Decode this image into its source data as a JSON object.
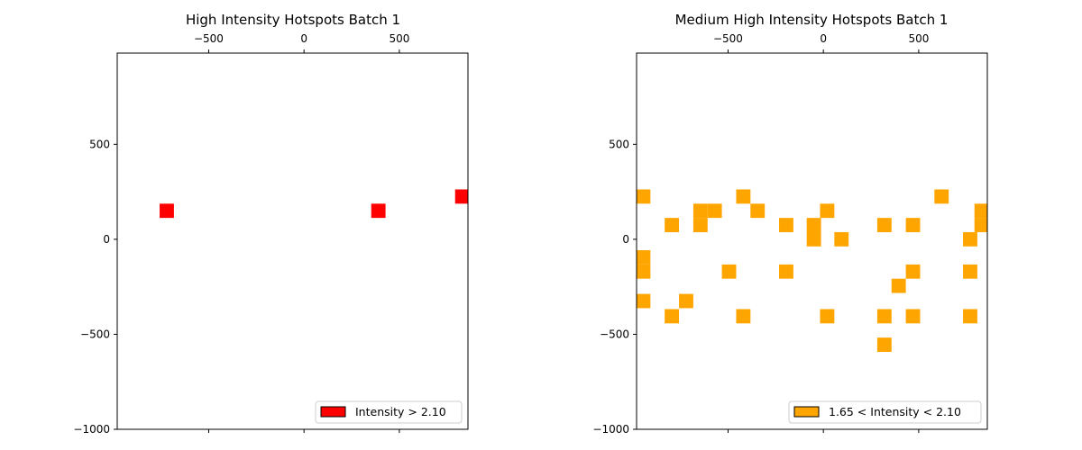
{
  "chart_data": [
    {
      "type": "heatmap",
      "title": "High Intensity Hotspots Batch 1",
      "xlabel": "",
      "ylabel": "",
      "xlim": [
        -980,
        860
      ],
      "ylim": [
        -1000,
        980
      ],
      "xticks": [
        -500,
        0,
        500
      ],
      "xtick_labels": [
        "−500",
        "0",
        "500"
      ],
      "yticks": [
        -1000,
        -500,
        0,
        500
      ],
      "ytick_labels": [
        "−1000",
        "−500",
        "0",
        "500"
      ],
      "cell_width": 75,
      "cell_height": 75,
      "color": "#ff0000",
      "legend": {
        "label": "Intensity > 2.10",
        "position": "lower-right"
      },
      "cells": [
        {
          "x": -720,
          "y": 150
        },
        {
          "x": 390,
          "y": 150
        },
        {
          "x": 830,
          "y": 225
        }
      ]
    },
    {
      "type": "heatmap",
      "title": "Medium High Intensity Hotspots Batch 1",
      "xlabel": "",
      "ylabel": "",
      "xlim": [
        -980,
        860
      ],
      "ylim": [
        -1000,
        980
      ],
      "xticks": [
        -500,
        0,
        500
      ],
      "xtick_labels": [
        "−500",
        "0",
        "500"
      ],
      "yticks": [
        -1000,
        -500,
        0,
        500
      ],
      "ytick_labels": [
        "−1000",
        "−500",
        "0",
        "500"
      ],
      "cell_width": 75,
      "cell_height": 75,
      "color": "#ffa500",
      "legend": {
        "label": "1.65 < Intensity < 2.10",
        "position": "lower-right"
      },
      "cells": [
        {
          "x": -945,
          "y": 225
        },
        {
          "x": -420,
          "y": 225
        },
        {
          "x": 620,
          "y": 225
        },
        {
          "x": -795,
          "y": 75
        },
        {
          "x": -645,
          "y": 150
        },
        {
          "x": -570,
          "y": 150
        },
        {
          "x": -345,
          "y": 150
        },
        {
          "x": 20,
          "y": 150
        },
        {
          "x": -645,
          "y": 75
        },
        {
          "x": -195,
          "y": 75
        },
        {
          "x": -50,
          "y": 75
        },
        {
          "x": 320,
          "y": 75
        },
        {
          "x": 470,
          "y": 75
        },
        {
          "x": 830,
          "y": 150
        },
        {
          "x": 830,
          "y": 75
        },
        {
          "x": -50,
          "y": 0
        },
        {
          "x": 95,
          "y": 0
        },
        {
          "x": 770,
          "y": 0
        },
        {
          "x": -945,
          "y": -95
        },
        {
          "x": -945,
          "y": -170
        },
        {
          "x": -495,
          "y": -170
        },
        {
          "x": -195,
          "y": -170
        },
        {
          "x": 470,
          "y": -170
        },
        {
          "x": 770,
          "y": -170
        },
        {
          "x": 395,
          "y": -245
        },
        {
          "x": -945,
          "y": -325
        },
        {
          "x": -720,
          "y": -325
        },
        {
          "x": -795,
          "y": -405
        },
        {
          "x": -420,
          "y": -405
        },
        {
          "x": 20,
          "y": -405
        },
        {
          "x": 320,
          "y": -405
        },
        {
          "x": 470,
          "y": -405
        },
        {
          "x": 770,
          "y": -405
        },
        {
          "x": 320,
          "y": -555
        }
      ]
    }
  ]
}
